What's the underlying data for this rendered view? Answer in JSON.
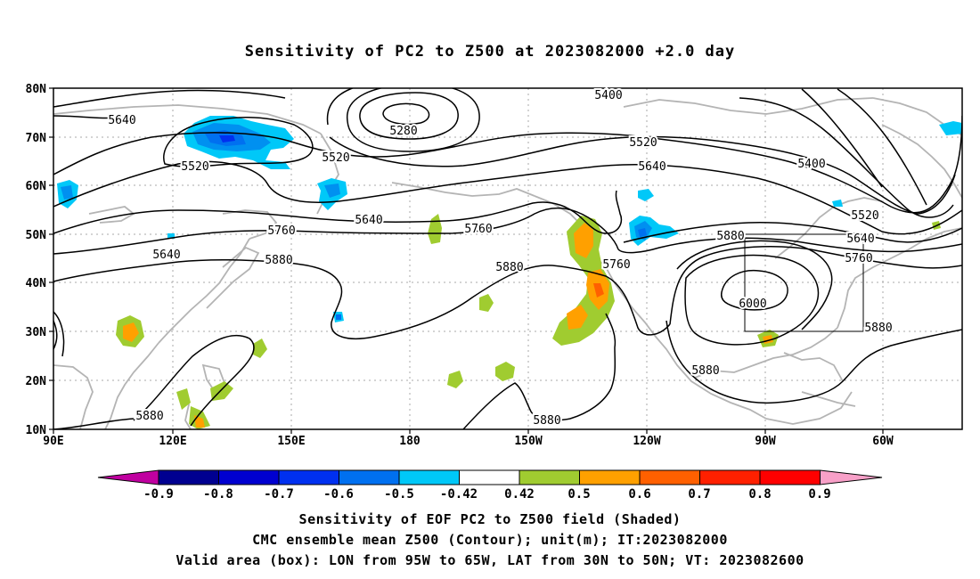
{
  "title": "Sensitivity of PC2 to Z500 at 2023082000 +2.0 day",
  "axes": {
    "lat_labels": [
      "80N",
      "70N",
      "60N",
      "50N",
      "40N",
      "30N",
      "20N",
      "10N"
    ],
    "lon_labels": [
      "90E",
      "120E",
      "150E",
      "180",
      "150W",
      "120W",
      "90W",
      "60W"
    ]
  },
  "contour_labels": {
    "c5640_left": "5640",
    "c5520_left": "5520",
    "c5280": "5280",
    "c5400_top": "5400",
    "c5520_mid": "5520",
    "c5640_mid": "5640",
    "c5760_left": "5760",
    "c5880_left": "5880",
    "c5640_pac": "5640",
    "c5760_mid": "5760",
    "c5880_mid": "5880",
    "c5760_us": "5760",
    "c5880_us": "5880",
    "c6000": "6000",
    "c5400_right": "5400",
    "c5520_right": "5520",
    "c5640_right": "5640",
    "c5760_right": "5760",
    "c5880_right": "5880",
    "c5880_sw": "5880",
    "c5880_south": "5880",
    "c5880_gulf": "5880"
  },
  "colorbar": {
    "labels": [
      "-0.9",
      "-0.8",
      "-0.7",
      "-0.6",
      "-0.5",
      "-0.42",
      "0.42",
      "0.5",
      "0.6",
      "0.7",
      "0.8",
      "0.9"
    ],
    "colors": {
      "below": "#c000a0",
      "bins": [
        "#000090",
        "#0000d0",
        "#0030f0",
        "#0070f0",
        "#0090f0",
        "#00c8f8",
        "#ffffff",
        "#a0cc30",
        "#ffa000",
        "#ff6000",
        "#ff2000",
        "#ff0000"
      ],
      "above": "#f8a0c8"
    }
  },
  "map_data": {
    "contour_interval_m": 120,
    "valid_area": {
      "lon_from": "95W",
      "lon_to": "65W",
      "lat_from": "30N",
      "lat_to": "50N"
    },
    "color_meaning": {
      "blue": "negative sensitivity",
      "green_orange": "positive sensitivity"
    }
  },
  "captions": {
    "line1": "Sensitivity of EOF PC2 to Z500 field (Shaded)",
    "line2": "CMC ensemble mean Z500 (Contour); unit(m); IT:2023082000",
    "line3": "Valid area (box): LON from 95W to 65W, LAT from 30N to 50N; VT: 2023082600"
  }
}
